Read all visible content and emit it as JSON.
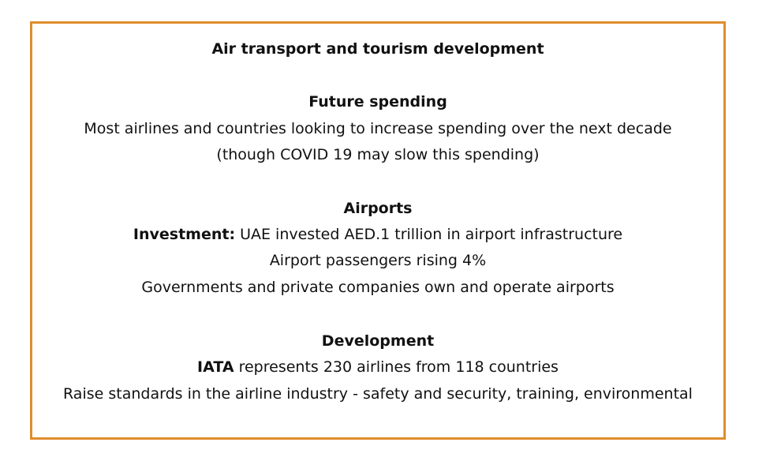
{
  "colors": {
    "border": "#e08c2c",
    "text": "#111111",
    "background": "#ffffff"
  },
  "title": "Air transport and tourism development",
  "sections": [
    {
      "heading": "Future spending",
      "lines": [
        {
          "lead": "",
          "text": "Most airlines and countries looking to increase spending over the next decade"
        },
        {
          "lead": "",
          "text": "(though COVID 19 may slow this spending)"
        }
      ]
    },
    {
      "heading": "Airports",
      "lines": [
        {
          "lead": "Investment:",
          "text": " UAE invested AED.1 trillion in airport infrastructure"
        },
        {
          "lead": "",
          "text": "Airport passengers rising 4%"
        },
        {
          "lead": "",
          "text": "Governments and private companies own and operate airports"
        }
      ]
    },
    {
      "heading": "Development",
      "lines": [
        {
          "lead": "IATA",
          "text": " represents 230 airlines from 118 countries"
        },
        {
          "lead": "",
          "text": "Raise standards in the airline industry - safety and security, training, environmental"
        }
      ]
    }
  ]
}
